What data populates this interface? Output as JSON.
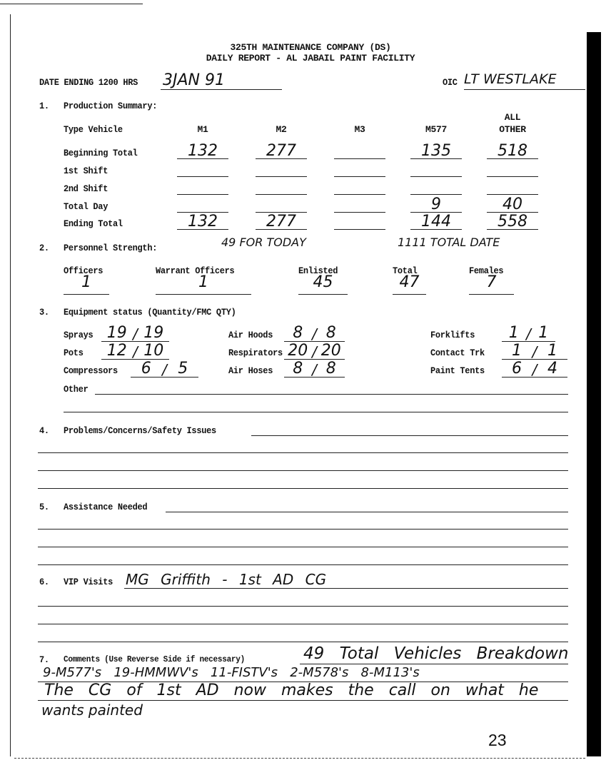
{
  "header": {
    "company": "325TH MAINTENANCE COMPANY (DS)",
    "report": "DAILY REPORT - AL JABAIL PAINT FACILITY"
  },
  "date": {
    "label": "DATE ENDING 1200 HRS",
    "value": "3JAN 91"
  },
  "oic": {
    "label": "OIC",
    "value": "LT WESTLAKE"
  },
  "production": {
    "number": "1.",
    "title": "Production Summary:",
    "type_label": "Type Vehicle",
    "columns": [
      "M1",
      "M2",
      "M3",
      "M577",
      "ALL",
      "OTHER"
    ],
    "rows": [
      {
        "label": "Beginning Total",
        "values": [
          "132",
          "277",
          "",
          "135",
          "518"
        ]
      },
      {
        "label": "1st Shift",
        "values": [
          "",
          "",
          "",
          "",
          ""
        ]
      },
      {
        "label": "2nd Shift",
        "values": [
          "",
          "",
          "",
          "",
          ""
        ]
      },
      {
        "label": "Total Day",
        "values": [
          "",
          "",
          "",
          "9",
          "40"
        ]
      },
      {
        "label": "Ending Total",
        "values": [
          "132",
          "277",
          "",
          "144",
          "558"
        ]
      }
    ]
  },
  "personnel": {
    "number": "2.",
    "title": "Personnel Strength:",
    "note_today": "49 FOR TODAY",
    "note_total": "1111 TOTAL DATE",
    "fields": [
      {
        "label": "Officers",
        "value": "1"
      },
      {
        "label": "Warrant Officers",
        "value": "1"
      },
      {
        "label": "Enlisted",
        "value": "45"
      },
      {
        "label": "Total",
        "value": "47"
      },
      {
        "label": "Females",
        "value": "7"
      }
    ]
  },
  "equipment": {
    "number": "3.",
    "title": "Equipment status (Quantity/FMC QTY)",
    "items": [
      {
        "label": "Sprays",
        "qty": "19",
        "fmc": "19"
      },
      {
        "label": "Pots",
        "qty": "12",
        "fmc": "10"
      },
      {
        "label": "Compressors",
        "qty": "6",
        "fmc": "5"
      },
      {
        "label": "Air Hoods",
        "qty": "8",
        "fmc": "8"
      },
      {
        "label": "Respirators",
        "qty": "20",
        "fmc": "20"
      },
      {
        "label": "Air Hoses",
        "qty": "8",
        "fmc": "8"
      },
      {
        "label": "Forklifts",
        "qty": "1",
        "fmc": "1"
      },
      {
        "label": "Contact Trk",
        "qty": "1",
        "fmc": "1"
      },
      {
        "label": "Paint Tents",
        "qty": "6",
        "fmc": "4"
      }
    ],
    "other_label": "Other"
  },
  "problems": {
    "number": "4.",
    "title": "Problems/Concerns/Safety Issues"
  },
  "assistance": {
    "number": "5.",
    "title": "Assistance Needed"
  },
  "vip": {
    "number": "6.",
    "title": "VIP Visits",
    "value": "MG Griffith - 1st AD CG"
  },
  "comments": {
    "number": "7.",
    "title": "Comments (Use Reverse Side if necessary)",
    "lines": [
      "49 Total Vehicles Breakdown",
      "9-M577's   19-HMMWV's   11-FISTV's   2-M578's   8-M113's",
      "The CG of 1st AD now makes the call on what he",
      "wants painted"
    ]
  },
  "page_number": "23"
}
